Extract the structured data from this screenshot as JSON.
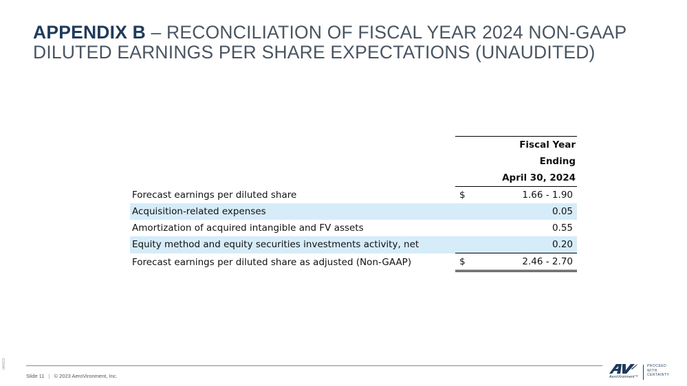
{
  "title": {
    "bold": "APPENDIX B",
    "rest": " – RECONCILIATION OF FISCAL YEAR 2024 NON-GAAP DILUTED EARNINGS PER SHARE EXPECTATIONS (UNAUDITED)"
  },
  "table": {
    "header": [
      "Fiscal Year",
      "Ending",
      "April 30, 2024"
    ],
    "rows": [
      {
        "label": "Forecast earnings per diluted share",
        "currency": "$",
        "value": "1.66 - 1.90"
      },
      {
        "label": "Acquisition-related expenses",
        "currency": "",
        "value": "0.05"
      },
      {
        "label": "Amortization of acquired intangible and FV assets",
        "currency": "",
        "value": "0.55"
      },
      {
        "label": "Equity method and equity securities investments activity, net",
        "currency": "",
        "value": "0.20"
      },
      {
        "label": "Forecast earnings per diluted share as adjusted (Non-GAAP)",
        "currency": "$",
        "value": "2.46 - 2.70"
      }
    ]
  },
  "footer": {
    "slide": "Slide 11",
    "sep": "|",
    "copyright": "© 2023 AeroVironment, Inc.",
    "side_code": "060623"
  },
  "logo": {
    "mark": "AV",
    "brand": "AeroVironment™",
    "tagline": [
      "PROCEED",
      "WITH",
      "CERTAINTY"
    ],
    "color": "#1f3b5c"
  },
  "colors": {
    "title_bold": "#1f3b5c",
    "title": "#4a5562",
    "row_shade": "#d6ecf9"
  }
}
